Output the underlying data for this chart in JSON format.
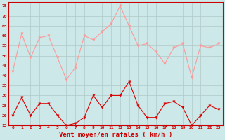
{
  "x": [
    0,
    1,
    2,
    3,
    4,
    5,
    6,
    7,
    8,
    9,
    10,
    11,
    12,
    13,
    14,
    15,
    16,
    17,
    18,
    19,
    20,
    21,
    22,
    23
  ],
  "wind_avg": [
    20,
    29,
    20,
    26,
    26,
    20,
    15,
    16,
    19,
    30,
    24,
    30,
    30,
    37,
    25,
    19,
    19,
    26,
    27,
    24,
    15,
    20,
    25,
    23
  ],
  "wind_gust": [
    42,
    61,
    49,
    59,
    60,
    49,
    38,
    44,
    60,
    58,
    62,
    66,
    75,
    65,
    55,
    56,
    52,
    46,
    54,
    56,
    39,
    55,
    54,
    56
  ],
  "bg_color": "#cce8e8",
  "grid_color": "#b0c8c8",
  "line_avg_color": "#dd0000",
  "line_gust_color": "#ff9999",
  "xlabel": "Vent moyen/en rafales ( km/h )",
  "ylim": [
    15,
    77
  ],
  "yticks": [
    15,
    20,
    25,
    30,
    35,
    40,
    45,
    50,
    55,
    60,
    65,
    70,
    75
  ],
  "bottom_line_color": "#cc0000"
}
